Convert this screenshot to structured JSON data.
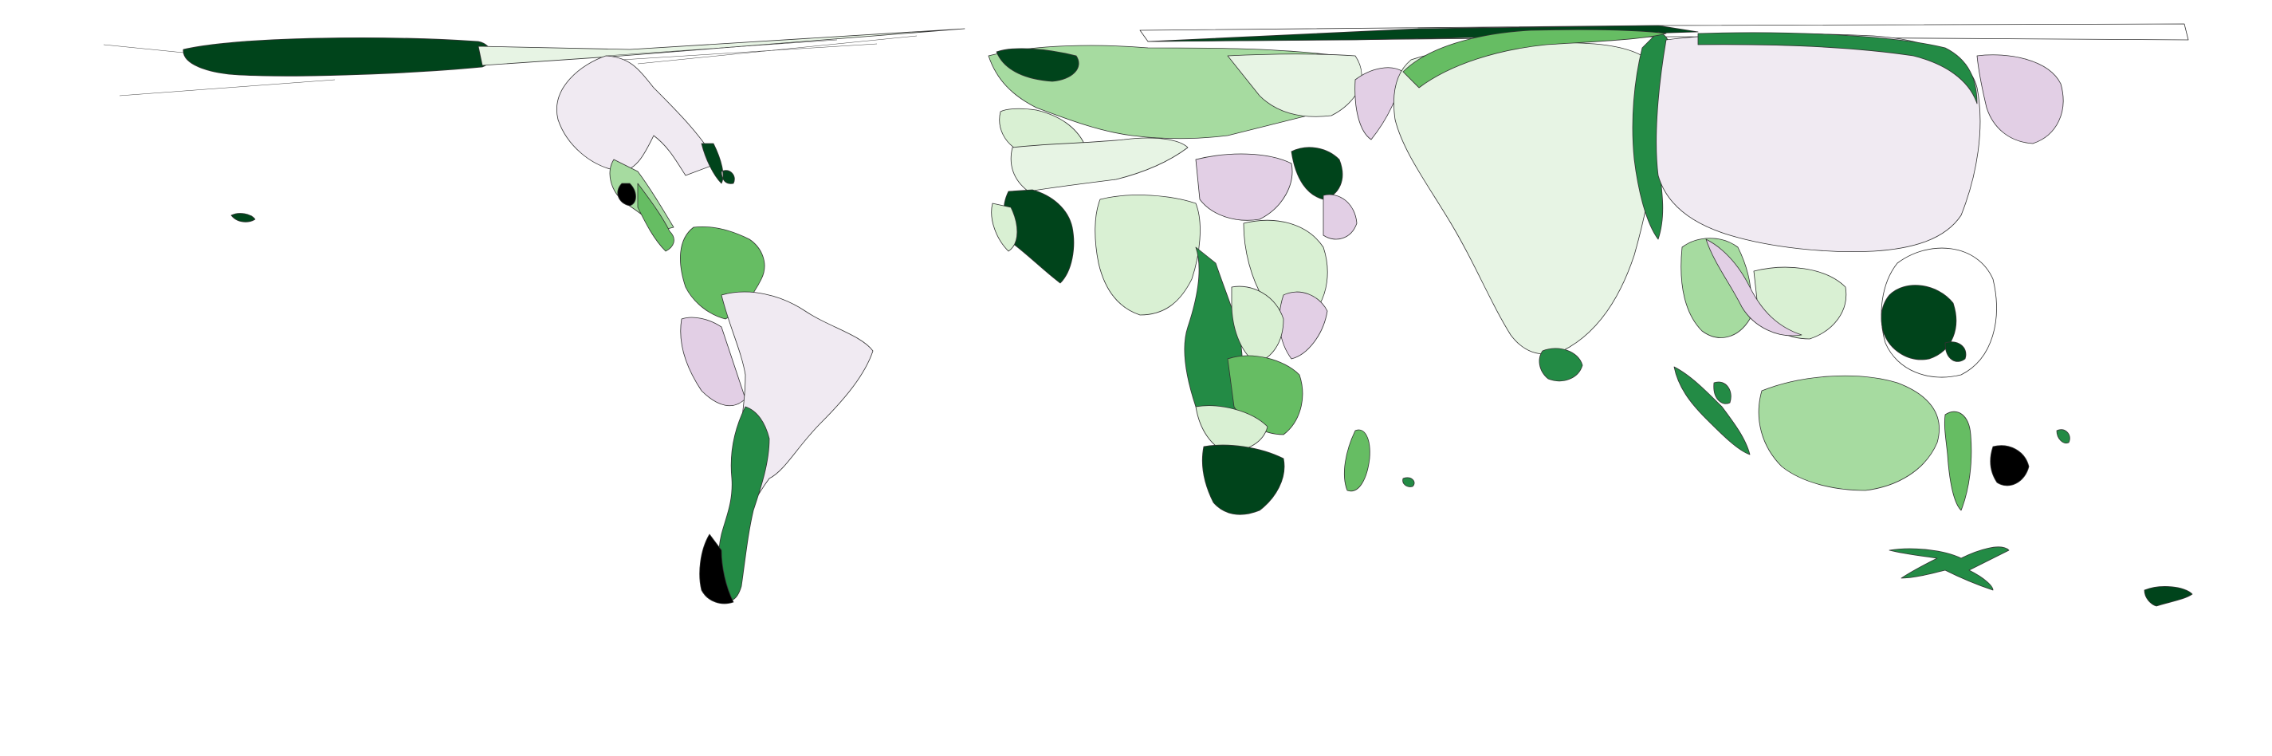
{
  "map": {
    "type": "cartogram",
    "palette": {
      "g5": "#00441b",
      "g4": "#238b45",
      "g3": "#66bd63",
      "g2": "#a6dba0",
      "g1": "#d9f0d3",
      "g0": "#e7f4e4",
      "p1": "#f0eaf2",
      "p2": "#e2cfe5"
    },
    "regions": [
      {
        "name": "north-america",
        "fill": "p1"
      },
      {
        "name": "greenland-arctic",
        "fill": "g5"
      },
      {
        "name": "mexico",
        "fill": "g2"
      },
      {
        "name": "central-america",
        "fill": "g3"
      },
      {
        "name": "caribbean",
        "fill": "g5"
      },
      {
        "name": "colombia-venezuela",
        "fill": "g3"
      },
      {
        "name": "peru",
        "fill": "p2"
      },
      {
        "name": "brazil",
        "fill": "p1"
      },
      {
        "name": "chile",
        "fill": "g4"
      },
      {
        "name": "europe",
        "fill": "g2"
      },
      {
        "name": "iberia",
        "fill": "g1"
      },
      {
        "name": "west-africa",
        "fill": "g5"
      },
      {
        "name": "sahel",
        "fill": "g1"
      },
      {
        "name": "north-east-africa",
        "fill": "p2"
      },
      {
        "name": "east-africa",
        "fill": "g1"
      },
      {
        "name": "central-africa",
        "fill": "g4"
      },
      {
        "name": "southern-africa",
        "fill": "g5"
      },
      {
        "name": "madagascar",
        "fill": "g3"
      },
      {
        "name": "middle-east",
        "fill": "g5"
      },
      {
        "name": "india",
        "fill": "g0"
      },
      {
        "name": "sri-lanka",
        "fill": "g4"
      },
      {
        "name": "russia-china",
        "fill": "p1"
      },
      {
        "name": "south-east-asia",
        "fill": "g2"
      },
      {
        "name": "japan",
        "fill": "g5"
      },
      {
        "name": "australia",
        "fill": "g2"
      },
      {
        "name": "indonesia",
        "fill": "g3"
      },
      {
        "name": "new-zealand",
        "fill": "g5"
      }
    ]
  }
}
